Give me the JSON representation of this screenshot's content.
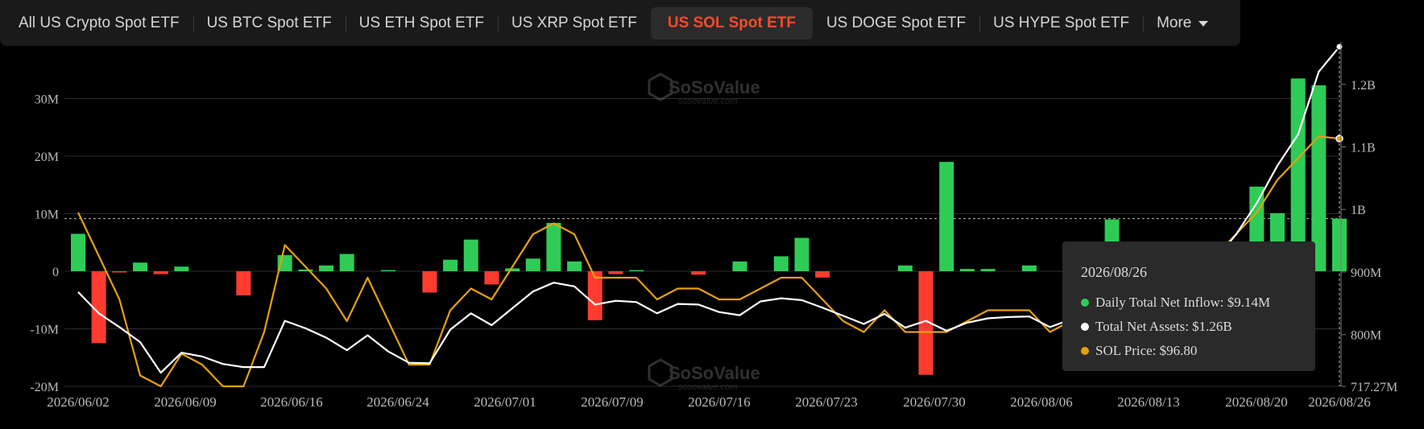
{
  "tabs": [
    {
      "label": "All US Crypto Spot ETF",
      "active": false
    },
    {
      "label": "US BTC Spot ETF",
      "active": false
    },
    {
      "label": "US ETH Spot ETF",
      "active": false
    },
    {
      "label": "US XRP Spot ETF",
      "active": false
    },
    {
      "label": "US SOL Spot ETF",
      "active": true
    },
    {
      "label": "US DOGE Spot ETF",
      "active": false
    },
    {
      "label": "US HYPE Spot ETF",
      "active": false
    }
  ],
  "more_label": "More",
  "watermark": {
    "brand": "SoSoValue",
    "url": "sosovalue.com"
  },
  "colors": {
    "inflow_positive": "#2ecc56",
    "inflow_negative": "#ff3b30",
    "net_assets": "#ffffff",
    "sol_price": "#e6a011",
    "tab_active": "#ff4a2b"
  },
  "tooltip": {
    "date": "2026/08/26",
    "inflow": "Daily Total Net Inflow: $9.14M",
    "assets": "Total Net Assets: $1.26B",
    "price": "SOL Price: $96.80"
  },
  "chart_data": {
    "type": "bar",
    "x_tick_labels": [
      "2026/06/02",
      "2026/06/09",
      "2026/06/16",
      "2026/06/24",
      "2026/07/01",
      "2026/07/09",
      "2026/07/16",
      "2026/07/23",
      "2026/07/30",
      "2026/08/06",
      "2026/08/13",
      "2026/08/20",
      "2026/08/26"
    ],
    "y_left_ticks": [
      "-20M",
      "-10M",
      "0",
      "10M",
      "20M",
      "30M"
    ],
    "y_left_range": [
      -20,
      30
    ],
    "y_right_ticks": [
      "717.27M",
      "800M",
      "900M",
      "1B",
      "1.1B",
      "1.2B"
    ],
    "y_right_range": [
      717.27,
      1260
    ],
    "reference_line_value": 9.14,
    "bars": [
      6.5,
      -12.5,
      -0.2,
      1.5,
      -0.5,
      0.8,
      0,
      0,
      -4.2,
      0,
      2.8,
      0.3,
      1.0,
      3.0,
      0,
      0.2,
      0,
      -3.7,
      2.0,
      5.5,
      -2.3,
      0.5,
      2.2,
      8.4,
      1.7,
      -8.5,
      -0.5,
      0.2,
      0,
      0,
      -0.6,
      0,
      1.7,
      0,
      2.6,
      5.8,
      -1.1,
      0,
      0,
      0,
      1.0,
      -18.0,
      19.0,
      0.4,
      0.4,
      0,
      1.0,
      0,
      -0.8,
      0,
      9.0,
      0,
      0,
      0,
      0,
      0,
      0,
      14.7,
      10.1,
      33.5,
      32.3,
      9.14
    ],
    "series": [
      {
        "name": "Total Net Assets",
        "unit": "USD millions",
        "values": [
          868,
          834,
          812,
          788,
          739,
          771,
          765,
          753,
          748,
          748,
          822,
          810,
          795,
          775,
          799,
          773,
          755,
          754,
          808,
          834,
          815,
          842,
          869,
          883,
          877,
          848,
          854,
          852,
          834,
          849,
          848,
          836,
          831,
          853,
          858,
          855,
          843,
          830,
          817,
          833,
          811,
          822,
          806,
          819,
          826,
          828,
          829,
          812,
          824,
          832,
          838,
          840,
          850,
          860,
          880,
          920,
          960,
          1010,
          1070,
          1120,
          1220,
          1260
        ]
      },
      {
        "name": "SOL Price",
        "unit": "USD",
        "values": [
          90,
          86,
          82,
          75,
          74,
          77,
          76,
          74,
          74,
          79,
          87,
          85,
          83,
          80,
          84,
          80,
          76,
          76,
          81,
          83,
          82,
          85,
          88,
          89,
          88,
          84,
          84,
          84,
          82,
          83,
          83,
          82,
          82,
          83,
          84,
          84,
          82,
          80,
          79,
          81,
          79,
          79,
          79,
          80,
          81,
          81,
          81,
          79,
          80,
          81,
          82,
          82,
          82,
          83,
          84,
          86,
          88,
          90,
          93,
          95,
          97,
          96.8
        ]
      }
    ]
  }
}
